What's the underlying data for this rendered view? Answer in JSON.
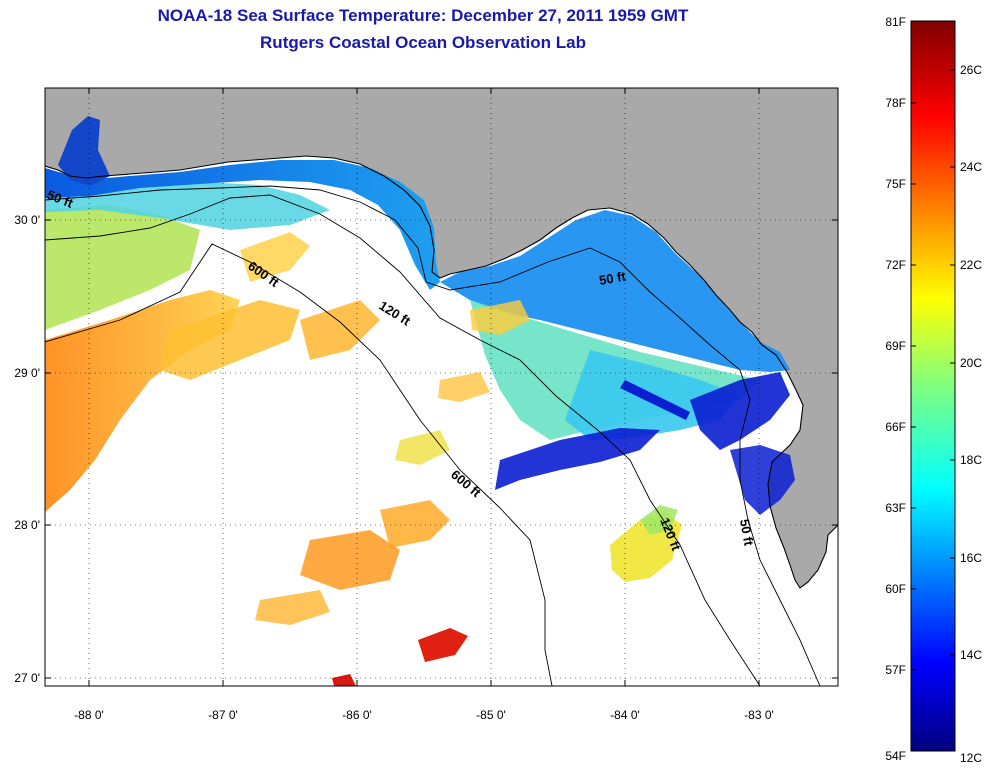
{
  "title": {
    "line1": "NOAA-18 Sea Surface Temperature:  December 27, 2011 1959 GMT",
    "line2": "Rutgers Coastal Ocean Observation Lab"
  },
  "map": {
    "lon_ticks": [
      "-88 0'",
      "-87 0'",
      "-86 0'",
      "-85 0'",
      "-84 0'",
      "-83 0'"
    ],
    "lat_ticks": [
      "30 0'",
      "29 0'",
      "28 0'",
      "27 0'"
    ],
    "contours": [
      "50 ft",
      "600 ft",
      "120 ft",
      "50 ft",
      "600 ft",
      "120 ft",
      "50 ft"
    ],
    "colors": {
      "land": "#a9a9a9",
      "no_data": "#ffffff",
      "coast": "#000000"
    }
  },
  "colorbar": {
    "fahrenheit": [
      "81F",
      "78F",
      "75F",
      "72F",
      "69F",
      "66F",
      "63F",
      "60F",
      "57F",
      "54F"
    ],
    "celsius": [
      "26C",
      "24C",
      "22C",
      "20C",
      "18C",
      "16C",
      "14C",
      "12C"
    ],
    "colormap": "jet"
  }
}
